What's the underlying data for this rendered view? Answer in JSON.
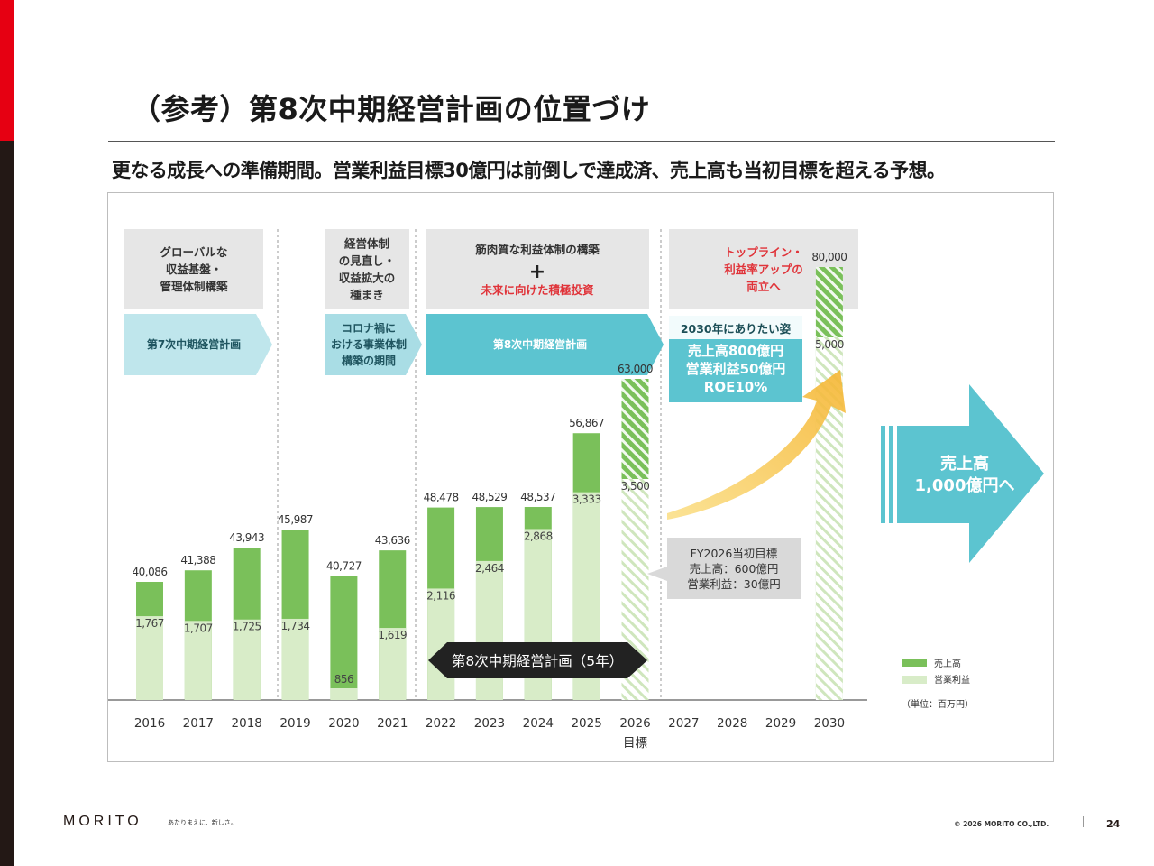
{
  "page": {
    "title": "（参考）第8次中期経営計画の位置づけ",
    "subtitle": "更なる成長への準備期間。営業利益目標30億円は前倒しで達成済、売上高も当初目標を超える予想。",
    "logo": "MORITO",
    "tagline": "あたりまえに、新しさ。",
    "copyright": "© 2026 MORITO CO.,LTD.",
    "page_number": "24"
  },
  "colors": {
    "accent_red": "#e60012",
    "sales_green": "#7ac05a",
    "profit_light_green": "#d8ecc8",
    "teal": "#5cc4d0",
    "gray_box": "#e6e6e6",
    "arrow_yellow": "#f7c04a",
    "target_red": "#e0343a"
  },
  "chart_data": {
    "type": "bar",
    "categories": [
      "2016",
      "2017",
      "2018",
      "2019",
      "2020",
      "2021",
      "2022",
      "2023",
      "2024",
      "2025",
      "2026",
      "2027",
      "2028",
      "2029",
      "2030"
    ],
    "category_sublabels": {
      "2026": "目標"
    },
    "ylim": [
      0,
      85000
    ],
    "series": [
      {
        "name": "売上高",
        "values": [
          40086,
          41388,
          43943,
          45987,
          40727,
          43636,
          48478,
          48529,
          48537,
          56867,
          63000,
          null,
          null,
          null,
          80000
        ],
        "labels": [
          "40,086",
          "41,388",
          "43,943",
          "45,987",
          "40,727",
          "43,636",
          "48,478",
          "48,529",
          "48,537",
          "56,867",
          "63,000",
          "",
          "",
          "",
          "80,000"
        ]
      },
      {
        "name": "営業利益",
        "values": [
          1767,
          1707,
          1725,
          1734,
          856,
          1619,
          2116,
          2464,
          2868,
          3333,
          3500,
          null,
          null,
          null,
          5000
        ],
        "labels": [
          "1,767",
          "1,707",
          "1,725",
          "1,734",
          "856",
          "1,619",
          "2,116",
          "2,464",
          "2,868",
          "3,333",
          "3,500",
          "",
          "",
          "",
          "5,000"
        ]
      }
    ],
    "hatched_years": [
      "2026",
      "2030"
    ],
    "legend": {
      "sales": "売上高",
      "profit": "営業利益",
      "unit": "（単位：百万円）"
    },
    "phases": [
      {
        "title_lines": [
          "グローバルな",
          "収益基盤・",
          "管理体制構築"
        ],
        "plan_lines": [
          "第7次中期経営計画"
        ]
      },
      {
        "title_lines": [
          "経営体制",
          "の見直し・",
          "収益拡大の",
          "種まき"
        ],
        "plan_lines": [
          "コロナ禍に",
          "おける事業体制",
          "構築の期間"
        ]
      },
      {
        "title_lines": [
          "筋肉質な利益体制の構築"
        ],
        "plus": "+",
        "red_line": "未来に向けた積極投資",
        "plan_lines": [
          "第8次中期経営計画"
        ]
      },
      {
        "title_lines": [
          "トップライン・",
          "利益率アップの",
          "両立へ"
        ]
      }
    ],
    "vision": {
      "heading": "2030年にありたい姿",
      "lines": [
        "売上高800億円",
        "営業利益50億円",
        "ROE10%"
      ]
    },
    "target_note": {
      "lines": [
        "FY2026当初目標",
        "売上高：600億円",
        "営業利益：30億円"
      ]
    },
    "plan_period_label": "第8次中期経営計画（5年）",
    "big_arrow": {
      "lines": [
        "売上高",
        "1,000億円へ"
      ]
    }
  }
}
